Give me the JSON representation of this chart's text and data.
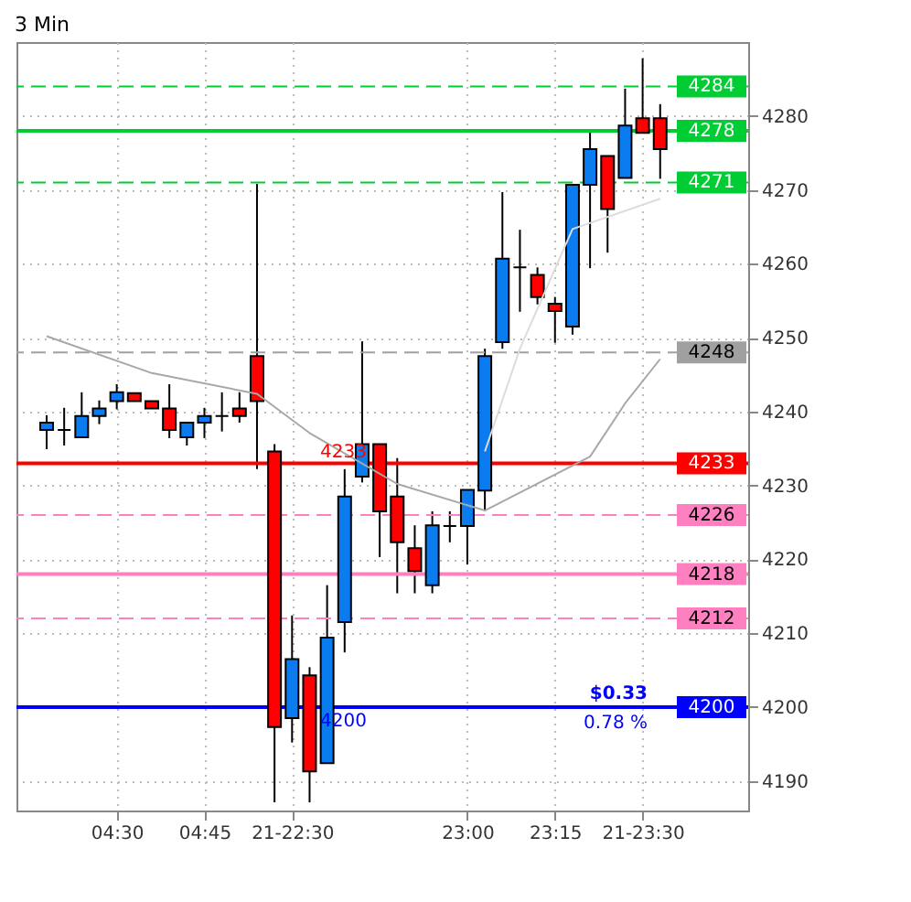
{
  "chart_data": {
    "type": "candlestick",
    "title": "3 Min",
    "categories": [
      null,
      null,
      null,
      null,
      "04:30",
      null,
      null,
      null,
      null,
      "04:45",
      null,
      null,
      null,
      null,
      "21-22:30",
      null,
      null,
      null,
      null,
      null,
      null,
      null,
      null,
      null,
      "23:00",
      null,
      null,
      null,
      null,
      "23:15",
      null,
      null,
      null,
      null,
      "21-23:30",
      null
    ],
    "ohlc": [
      [
        4237.5,
        4239.5,
        4234.9,
        4238.5
      ],
      [
        4237.5,
        4240.5,
        4235.4,
        4237.5
      ],
      [
        4236.5,
        4242.6,
        4236.5,
        4239.4
      ],
      [
        4239.4,
        4241.5,
        4238.3,
        4240.4
      ],
      [
        4241.4,
        4243.7,
        4240.3,
        4242.6
      ],
      [
        4242.5,
        4242.5,
        4241.4,
        4241.4
      ],
      [
        4241.4,
        4241.4,
        4240.4,
        4240.4
      ],
      [
        4240.4,
        4243.7,
        4236.4,
        4237.5
      ],
      [
        4236.5,
        4238.5,
        4235.4,
        4238.5
      ],
      [
        4238.5,
        4240.5,
        4236.4,
        4239.4
      ],
      [
        4239.4,
        4242.6,
        4237.3,
        4239.4
      ],
      [
        4240.4,
        4242.6,
        4238.5,
        4239.4
      ],
      [
        4247.5,
        4270.8,
        4232.2,
        4241.4
      ],
      [
        4234.6,
        4235.6,
        4187.1,
        4197.3
      ],
      [
        4198.5,
        4212.4,
        4195.2,
        4206.5
      ],
      [
        4204.3,
        4205.4,
        4187.1,
        4191.3
      ],
      [
        4192.4,
        4216.5,
        4192.4,
        4209.4
      ],
      [
        4211.5,
        4232.2,
        4207.4,
        4228.5
      ],
      [
        4231.2,
        4249.5,
        4230.4,
        4235.6
      ],
      [
        4235.6,
        4235.6,
        4220.3,
        4226.5
      ],
      [
        4228.5,
        4233.7,
        4215.4,
        4222.3
      ],
      [
        4221.5,
        4224.6,
        4215.4,
        4218.4
      ],
      [
        4216.5,
        4226.5,
        4215.4,
        4224.6
      ],
      [
        4224.5,
        4226.5,
        4222.3,
        4224.5
      ],
      [
        4224.5,
        4229.4,
        4219.3,
        4229.4
      ],
      [
        4229.3,
        4248.5,
        4226.5,
        4247.5
      ],
      [
        4249.4,
        4269.7,
        4248.5,
        4260.7
      ],
      [
        4259.5,
        4264.6,
        4253.5,
        4259.5
      ],
      [
        4258.5,
        4259.5,
        4254.5,
        4255.5
      ],
      [
        4254.6,
        4255.5,
        4249.3,
        4253.6
      ],
      [
        4251.5,
        4270.7,
        4250.4,
        4270.7
      ],
      [
        4270.7,
        4277.9,
        4259.4,
        4275.5
      ],
      [
        4274.6,
        4274.6,
        4261.5,
        4267.4
      ],
      [
        4271.6,
        4283.7,
        4271.6,
        4278.7
      ],
      [
        4279.7,
        4287.8,
        4277.7,
        4277.7
      ],
      [
        4279.7,
        4281.6,
        4271.5,
        4275.5
      ]
    ],
    "colors": [
      "#0a7cf0",
      "#000000",
      "#0a7cf0",
      "#0a7cf0",
      "#0a7cf0",
      "#ff0000",
      "#ff0000",
      "#ff0000",
      "#0a7cf0",
      "#0a7cf0",
      "#000000",
      "#ff0000",
      "#ff0000",
      "#ff0000",
      "#0a7cf0",
      "#ff0000",
      "#0a7cf0",
      "#0a7cf0",
      "#0a7cf0",
      "#ff0000",
      "#ff0000",
      "#ff0000",
      "#0a7cf0",
      "#000000",
      "#0a7cf0",
      "#0a7cf0",
      "#0a7cf0",
      "#000000",
      "#ff0000",
      "#ff0000",
      "#0a7cf0",
      "#0a7cf0",
      "#ff0000",
      "#0a7cf0",
      "#ff0000",
      "#ff0000"
    ],
    "series": [
      {
        "type": "line",
        "color": "#a8a8a8",
        "values": [
          4250.2,
          null,
          null,
          null,
          null,
          null,
          4245.2,
          null,
          null,
          null,
          null,
          null,
          4242.4,
          null,
          null,
          4237.1,
          null,
          null,
          null,
          null,
          4230.2,
          null,
          null,
          null,
          null,
          4226.6,
          null,
          null,
          null,
          null,
          null,
          4233.9,
          null,
          4241.1,
          null,
          4247.1
        ]
      },
      {
        "type": "line",
        "color": "#dcdcdc",
        "values": [
          null,
          null,
          null,
          null,
          null,
          null,
          null,
          null,
          null,
          null,
          null,
          null,
          null,
          null,
          null,
          null,
          null,
          null,
          null,
          null,
          null,
          null,
          null,
          null,
          null,
          4234.6,
          null,
          4248.5,
          null,
          null,
          4264.7,
          null,
          null,
          null,
          null,
          4268.8
        ]
      }
    ],
    "ylim": [
      4186,
      4290
    ],
    "yticks": [
      4190,
      4200,
      4210,
      4220,
      4230,
      4240,
      4250,
      4260,
      4270,
      4280
    ],
    "grid": true,
    "ref_lines": [
      {
        "axis": "y",
        "value": 4284,
        "label": "4284",
        "color": "#00cc33",
        "line_style": "dashed"
      },
      {
        "axis": "y",
        "value": 4278,
        "label": "4278",
        "color": "#00cc33",
        "line_style": "solid"
      },
      {
        "axis": "y",
        "value": 4271,
        "label": "4271",
        "color": "#00cc33",
        "line_style": "dashed"
      },
      {
        "axis": "y",
        "value": 4248,
        "label": "4248",
        "color": "#a0a0a0",
        "line_style": "dashed"
      },
      {
        "axis": "y",
        "value": 4233,
        "label": "4233",
        "color": "#ff0000",
        "line_style": "solid"
      },
      {
        "axis": "y",
        "value": 4226,
        "label": "4226",
        "color": "#ff80c0",
        "line_style": "dashed"
      },
      {
        "axis": "y",
        "value": 4218,
        "label": "4218",
        "color": "#ff80c0",
        "line_style": "solid"
      },
      {
        "axis": "y",
        "value": 4212,
        "label": "4212",
        "color": "#ff80c0",
        "line_style": "dashed"
      },
      {
        "axis": "y",
        "value": 4200,
        "label": "4200",
        "color": "#0000ff",
        "line_style": "solid"
      }
    ],
    "annotations": [
      "4233",
      "4200",
      "$0.33",
      "0.78 %"
    ]
  }
}
